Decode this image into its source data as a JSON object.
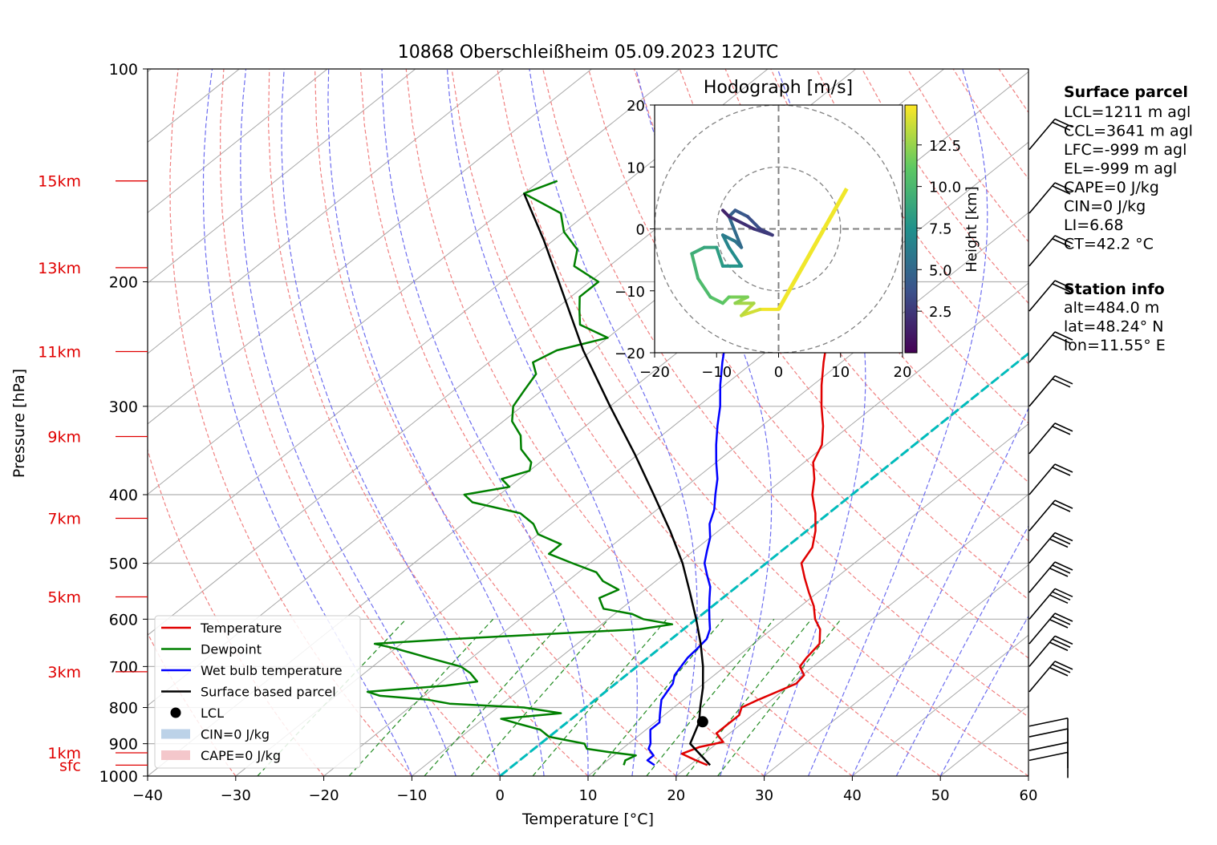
{
  "title": "10868 Oberschleißheim 05.09.2023 12UTC",
  "xlabel": "Temperature [°C]",
  "ylabel": "Pressure [hPa]",
  "chart_data": {
    "type": "line",
    "subtype": "skew-T log-p diagram",
    "xlim": [
      -40,
      60
    ],
    "ylim": [
      1000,
      100
    ],
    "y_scale": "log",
    "grid": true,
    "x_ticks": [
      "−40",
      "−30",
      "−20",
      "−10",
      "0",
      "10",
      "20",
      "30",
      "40",
      "50",
      "60"
    ],
    "y_ticks": [
      "100",
      "200",
      "300",
      "400",
      "500",
      "600",
      "700",
      "800",
      "900",
      "1000"
    ],
    "height_markers": [
      {
        "label": "sfc",
        "p": 965
      },
      {
        "label": "1km",
        "p": 927
      },
      {
        "label": "3km",
        "p": 712
      },
      {
        "label": "5km",
        "p": 558
      },
      {
        "label": "7km",
        "p": 432
      },
      {
        "label": "9km",
        "p": 331
      },
      {
        "label": "11km",
        "p": 251
      },
      {
        "label": "13km",
        "p": 191
      },
      {
        "label": "15km",
        "p": 144
      }
    ],
    "series": [
      {
        "name": "Temperature",
        "color": "#e00000",
        "points": [
          [
            1000,
            null
          ],
          [
            965,
            22
          ],
          [
            950,
            20
          ],
          [
            930,
            17.5
          ],
          [
            910,
            18.5
          ],
          [
            895,
            20.5
          ],
          [
            870,
            18.5
          ],
          [
            845,
            18.5
          ],
          [
            820,
            18.5
          ],
          [
            800,
            17.7
          ],
          [
            780,
            18.5
          ],
          [
            760,
            19.5
          ],
          [
            740,
            20.5
          ],
          [
            720,
            20.2
          ],
          [
            700,
            18.5
          ],
          [
            680,
            18
          ],
          [
            650,
            17.5
          ],
          [
            620,
            15.5
          ],
          [
            600,
            13.5
          ],
          [
            575,
            11.5
          ],
          [
            550,
            9
          ],
          [
            525,
            6.5
          ],
          [
            500,
            4
          ],
          [
            475,
            3
          ],
          [
            450,
            1
          ],
          [
            425,
            -1.5
          ],
          [
            400,
            -4.5
          ],
          [
            380,
            -6.5
          ],
          [
            360,
            -9
          ],
          [
            340,
            -10.5
          ],
          [
            320,
            -13
          ],
          [
            300,
            -16
          ],
          [
            280,
            -19
          ],
          [
            260,
            -22
          ],
          [
            250,
            -23.5
          ],
          [
            240,
            -25
          ],
          [
            230,
            -27.5
          ],
          [
            220,
            -30
          ],
          [
            210,
            -32.5
          ],
          [
            200,
            -35
          ],
          [
            190,
            -38
          ],
          [
            180,
            -41
          ],
          [
            170,
            -44.5
          ],
          [
            160,
            -48.5
          ],
          [
            150,
            -52
          ],
          [
            145,
            -53
          ]
        ]
      },
      {
        "name": "Dewpoint",
        "color": "#008000",
        "points": [
          [
            965,
            12.5
          ],
          [
            950,
            12
          ],
          [
            935,
            12.5
          ],
          [
            925,
            9
          ],
          [
            915,
            6
          ],
          [
            900,
            5
          ],
          [
            880,
            0
          ],
          [
            860,
            -2
          ],
          [
            845,
            -5
          ],
          [
            830,
            -8
          ],
          [
            815,
            -2
          ],
          [
            800,
            -7
          ],
          [
            790,
            -16
          ],
          [
            780,
            -19
          ],
          [
            770,
            -25
          ],
          [
            760,
            -27
          ],
          [
            745,
            -19
          ],
          [
            735,
            -16
          ],
          [
            725,
            -17
          ],
          [
            715,
            -18
          ],
          [
            700,
            -20
          ],
          [
            680,
            -25
          ],
          [
            660,
            -30
          ],
          [
            650,
            -33
          ],
          [
            640,
            -25
          ],
          [
            630,
            -15
          ],
          [
            620,
            -5
          ],
          [
            610,
            -2
          ],
          [
            600,
            -6
          ],
          [
            590,
            -8
          ],
          [
            580,
            -12
          ],
          [
            570,
            -13
          ],
          [
            560,
            -14
          ],
          [
            545,
            -13
          ],
          [
            530,
            -16
          ],
          [
            515,
            -18
          ],
          [
            500,
            -22
          ],
          [
            485,
            -26
          ],
          [
            470,
            -26
          ],
          [
            455,
            -30
          ],
          [
            440,
            -32
          ],
          [
            425,
            -35
          ],
          [
            410,
            -42
          ],
          [
            400,
            -44
          ],
          [
            390,
            -40
          ],
          [
            380,
            -42
          ],
          [
            370,
            -40
          ],
          [
            360,
            -41
          ],
          [
            345,
            -44
          ],
          [
            330,
            -46
          ],
          [
            315,
            -49
          ],
          [
            300,
            -51
          ],
          [
            285,
            -52
          ],
          [
            270,
            -53
          ],
          [
            260,
            -55
          ],
          [
            250,
            -54
          ],
          [
            240,
            -50
          ],
          [
            230,
            -55
          ],
          [
            220,
            -57
          ],
          [
            210,
            -59
          ],
          [
            200,
            -59
          ],
          [
            190,
            -64
          ],
          [
            180,
            -66
          ],
          [
            170,
            -70
          ],
          [
            160,
            -73
          ],
          [
            150,
            -80
          ],
          [
            144,
            -78
          ]
        ]
      },
      {
        "name": "Wet bulb temperature",
        "color": "#0000ff",
        "points": [
          [
            965,
            16
          ],
          [
            950,
            14.5
          ],
          [
            935,
            14.5
          ],
          [
            915,
            13
          ],
          [
            900,
            12.5
          ],
          [
            880,
            11.5
          ],
          [
            860,
            10.5
          ],
          [
            840,
            10.5
          ],
          [
            820,
            9.5
          ],
          [
            800,
            8.5
          ],
          [
            780,
            7.5
          ],
          [
            760,
            7
          ],
          [
            740,
            6.5
          ],
          [
            720,
            5.5
          ],
          [
            700,
            5
          ],
          [
            680,
            4.5
          ],
          [
            660,
            4.3
          ],
          [
            640,
            4
          ],
          [
            620,
            3
          ],
          [
            600,
            1.5
          ],
          [
            580,
            0
          ],
          [
            560,
            -1.5
          ],
          [
            540,
            -3
          ],
          [
            520,
            -5
          ],
          [
            500,
            -7
          ],
          [
            480,
            -8.5
          ],
          [
            460,
            -10
          ],
          [
            440,
            -12
          ],
          [
            420,
            -13.5
          ],
          [
            400,
            -15.5
          ],
          [
            380,
            -17.5
          ],
          [
            360,
            -20
          ],
          [
            340,
            -22.5
          ],
          [
            320,
            -25
          ],
          [
            300,
            -27.5
          ],
          [
            280,
            -30.5
          ],
          [
            260,
            -33.5
          ],
          [
            250,
            -35
          ],
          [
            240,
            -36.5
          ],
          [
            230,
            -38.5
          ],
          [
            220,
            -40.5
          ],
          [
            210,
            -43
          ],
          [
            200,
            -45
          ],
          [
            190,
            -48
          ],
          [
            180,
            -51
          ],
          [
            170,
            -54
          ],
          [
            160,
            -58
          ],
          [
            150,
            -62
          ],
          [
            144,
            -63
          ]
        ]
      },
      {
        "name": "Surface based parcel",
        "color": "#000000",
        "points": [
          [
            965,
            22.3
          ],
          [
            900,
            17
          ],
          [
            840,
            15
          ],
          [
            800,
            13
          ],
          [
            750,
            10.5
          ],
          [
            700,
            7.5
          ],
          [
            650,
            4
          ],
          [
            600,
            0
          ],
          [
            550,
            -4.5
          ],
          [
            500,
            -9.5
          ],
          [
            450,
            -15.5
          ],
          [
            400,
            -22.5
          ],
          [
            350,
            -30.5
          ],
          [
            300,
            -40
          ],
          [
            250,
            -51
          ],
          [
            200,
            -63.5
          ],
          [
            175,
            -71
          ],
          [
            150,
            -80
          ]
        ]
      }
    ],
    "lcl": {
      "name": "LCL",
      "p": 838,
      "t": 15.3
    },
    "cin_label": "CIN=0 J/kg",
    "cape_label": "CAPE=0 J/kg",
    "legend": {
      "location": "lower-left",
      "entries": [
        "Temperature",
        "Dewpoint",
        "Wet bulb temperature",
        "Surface based parcel",
        "LCL",
        "CIN=0 J/kg",
        "CAPE=0 J/kg"
      ]
    },
    "freezing_level_isotherm_color": "#00bcbc",
    "hodograph": {
      "title": "Hodograph [m/s]",
      "xlim": [
        -20,
        20
      ],
      "ylim": [
        -20,
        20
      ],
      "x_ticks": [
        "−20",
        "−10",
        "0",
        "10",
        "20"
      ],
      "y_ticks": [
        "20",
        "10",
        "0",
        "−10",
        "−20"
      ],
      "rings": [
        10,
        20
      ],
      "colorbar_label": "Height [km]",
      "colorbar_ticks": [
        "2.5",
        "5.0",
        "7.5",
        "10.0",
        "12.5"
      ],
      "colormap": "viridis",
      "points": [
        [
          0,
          -13,
          0.5
        ],
        [
          4,
          -5,
          0.3
        ],
        [
          8,
          1,
          0.2
        ],
        [
          11,
          6.5,
          0.1
        ],
        [
          0,
          -13,
          0.8
        ],
        [
          -3,
          -13,
          1.5
        ],
        [
          -6,
          -14,
          2
        ],
        [
          -4,
          -12,
          2.5
        ],
        [
          -7,
          -12,
          3
        ],
        [
          -5,
          -11,
          3.5
        ],
        [
          -8,
          -11,
          4
        ],
        [
          -9,
          -12,
          4.5
        ],
        [
          -11,
          -11,
          5
        ],
        [
          -13,
          -8,
          5.5
        ],
        [
          -14,
          -4,
          6
        ],
        [
          -12,
          -3,
          6.5
        ],
        [
          -10,
          -3,
          7
        ],
        [
          -9,
          -6,
          7.5
        ],
        [
          -6,
          -6,
          8
        ],
        [
          -8,
          -3,
          8.5
        ],
        [
          -9,
          -1,
          9
        ],
        [
          -7,
          -2,
          9.5
        ],
        [
          -6,
          -3,
          10
        ],
        [
          -8,
          2,
          10.5
        ],
        [
          -7,
          3,
          11
        ],
        [
          -5,
          2,
          11.5
        ],
        [
          -3,
          0,
          12
        ],
        [
          -1,
          -1,
          12.5
        ],
        [
          -4,
          0,
          13
        ],
        [
          -8,
          2,
          13.5
        ],
        [
          -9,
          3,
          14
        ]
      ]
    },
    "barbs": [
      {
        "p": 950,
        "speed": "50"
      },
      {
        "p": 920,
        "speed": "50"
      },
      {
        "p": 880,
        "speed": "45"
      },
      {
        "p": 850,
        "speed": "45"
      },
      {
        "p": 760,
        "speed": "30"
      },
      {
        "p": 700,
        "speed": "30"
      },
      {
        "p": 650,
        "speed": "30"
      },
      {
        "p": 600,
        "speed": "25"
      },
      {
        "p": 550,
        "speed": "25"
      },
      {
        "p": 500,
        "speed": "25"
      },
      {
        "p": 450,
        "speed": "20"
      },
      {
        "p": 400,
        "speed": "20"
      },
      {
        "p": 350,
        "speed": "15"
      },
      {
        "p": 300,
        "speed": "15"
      },
      {
        "p": 260,
        "speed": "15"
      },
      {
        "p": 220,
        "speed": "15"
      },
      {
        "p": 190,
        "speed": "15"
      },
      {
        "p": 160,
        "speed": "20"
      },
      {
        "p": 130,
        "speed": "20"
      }
    ]
  },
  "surface_parcel": {
    "heading": "Surface parcel",
    "lines": [
      "LCL=1211 m agl",
      "CCL=3641 m agl",
      "LFC=-999 m agl",
      "EL=-999 m agl",
      "CAPE=0 J/kg",
      "CIN=0 J/kg",
      "LI=6.68",
      "CT=42.2 °C"
    ]
  },
  "station_info": {
    "heading": "Station info",
    "lines": [
      "alt=484.0 m",
      "lat=48.24° N",
      "lon=11.55° E"
    ]
  }
}
